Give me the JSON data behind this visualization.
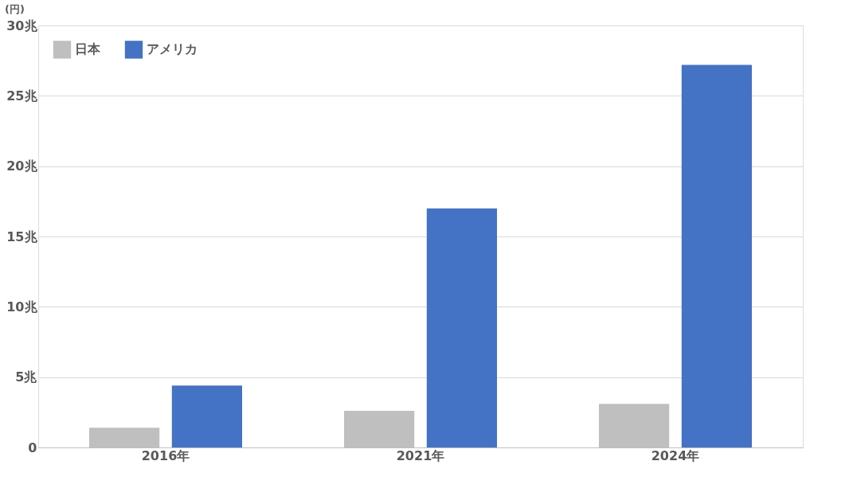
{
  "chart_data": {
    "type": "bar",
    "ylabel": "(円)",
    "categories": [
      "2016年",
      "2021年",
      "2024年"
    ],
    "series": [
      {
        "name": "日本",
        "color": "#bfbfbf",
        "values": [
          1.4,
          2.6,
          3.1
        ]
      },
      {
        "name": "アメリカ",
        "color": "#4472c4",
        "values": [
          4.4,
          17.0,
          27.2
        ]
      }
    ],
    "ylim": [
      0,
      30
    ],
    "yticks": [
      {
        "value": 0,
        "label": "0"
      },
      {
        "value": 5,
        "label": "5兆"
      },
      {
        "value": 10,
        "label": "10兆"
      },
      {
        "value": 15,
        "label": "15兆"
      },
      {
        "value": 20,
        "label": "20兆"
      },
      {
        "value": 25,
        "label": "25兆"
      },
      {
        "value": 30,
        "label": "30兆"
      }
    ],
    "grid": "y",
    "legend": "top left"
  }
}
